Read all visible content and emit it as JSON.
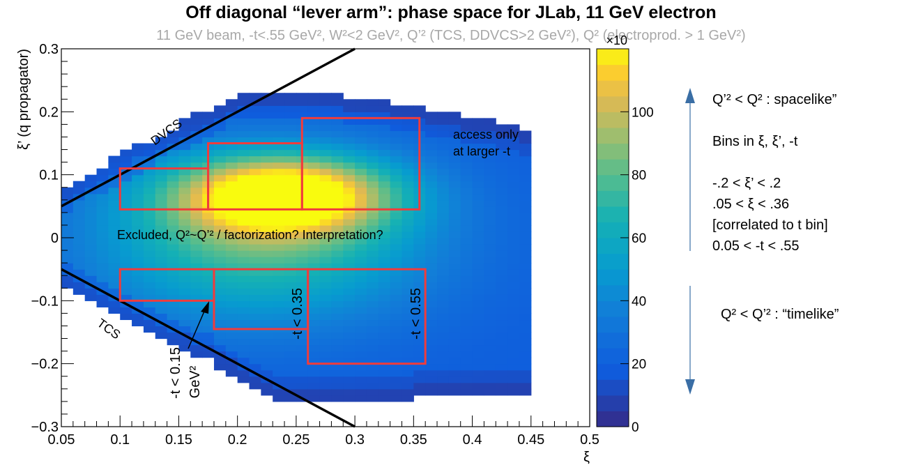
{
  "chart_data": {
    "type": "heatmap",
    "title": "Off diagonal “lever arm”: phase space for JLab, 11 GeV electron",
    "subtitle": "11 GeV beam, -t<.55 GeV², W²<2 GeV², Q’² (TCS, DDVCS>2 GeV²), Q² (electroprod. > 1 GeV²)",
    "xlabel": "ξ",
    "ylabel": "ξ’ (q propagator)",
    "xlim": [
      0.05,
      0.5
    ],
    "ylim": [
      -0.3,
      0.3
    ],
    "x_ticks": [
      "0.05",
      "0.1",
      "0.15",
      "0.2",
      "0.25",
      "0.3",
      "0.35",
      "0.4",
      "0.45",
      "0.5"
    ],
    "y_ticks": [
      "−0.3",
      "−0.2",
      "−0.1",
      "0",
      "0.1",
      "0.2",
      "0.3"
    ],
    "colorbar": {
      "range": [
        0,
        120
      ],
      "exponent_label": "×10",
      "ticks": [
        "0",
        "20",
        "40",
        "60",
        "80",
        "100"
      ]
    },
    "lines": [
      {
        "label": "DVCS",
        "from": [
          0.05,
          0.05
        ],
        "to": [
          0.3,
          0.3
        ]
      },
      {
        "label": "TCS",
        "from": [
          0.05,
          -0.05
        ],
        "to": [
          0.3,
          -0.3
        ]
      }
    ],
    "bins": [
      {
        "label": "",
        "xi": [
          0.1,
          0.175
        ],
        "xip": [
          0.045,
          0.11
        ]
      },
      {
        "label": "",
        "xi": [
          0.175,
          0.255
        ],
        "xip": [
          0.045,
          0.15
        ]
      },
      {
        "label": "",
        "xi": [
          0.255,
          0.355
        ],
        "xip": [
          0.045,
          0.19
        ]
      },
      {
        "label": "-t < 0.15 GeV²",
        "xi": [
          0.1,
          0.18
        ],
        "xip": [
          -0.1,
          -0.05
        ]
      },
      {
        "label": "-t < 0.35",
        "xi": [
          0.18,
          0.26
        ],
        "xip": [
          -0.145,
          -0.05
        ]
      },
      {
        "label": "-t < 0.55",
        "xi": [
          0.26,
          0.36
        ],
        "xip": [
          -0.2,
          -0.05
        ]
      }
    ],
    "annotations": [
      "access only",
      "at larger -t",
      "Excluded, Q²~Q’² / factorization? Interpretation?"
    ]
  },
  "side_notes": {
    "spacelike": "Q’² < Q² : spacelike”",
    "bins_title": "Bins in ξ, ξ’, -t",
    "range_xip": "-.2   < ξ’ < .2",
    "range_xi": ".05   < ξ < .36",
    "correlated": "[correlated to t bin]",
    "range_t": "0.05 < -t < .55",
    "timelike": "Q² < Q’² : “timelike”"
  },
  "colors": {
    "bin_outline": "#f03c3c",
    "arrow": "#3a6ea5"
  }
}
